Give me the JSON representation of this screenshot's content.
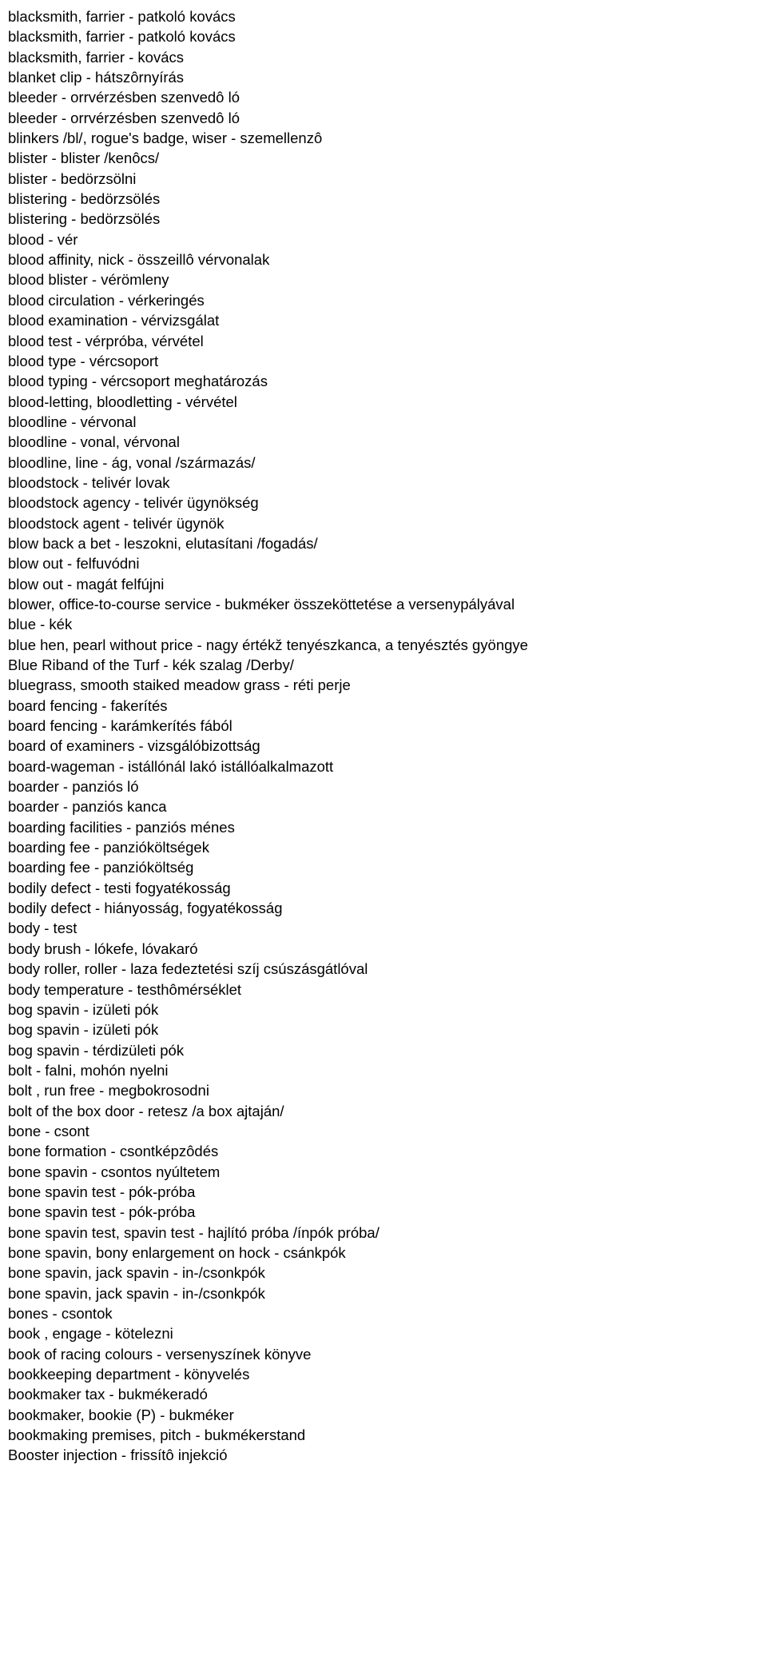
{
  "entries": [
    "blacksmith, farrier - patkoló kovács",
    "blacksmith, farrier - patkoló kovács",
    "blacksmith, farrier - kovács",
    "blanket clip - hátszôrnyírás",
    "bleeder - orrvérzésben szenvedô ló",
    "bleeder - orrvérzésben szenvedô ló",
    "blinkers /bl/, rogue's badge, wiser - szemellenzô",
    "blister - blister /kenôcs/",
    "blister - bedörzsölni",
    "blistering - bedörzsölés",
    "blistering - bedörzsölés",
    "blood - vér",
    "blood affinity, nick - összeillô vérvonalak",
    "blood blister - vérömleny",
    "blood circulation - vérkeringés",
    "blood examination - vérvizsgálat",
    "blood test - vérpróba, vérvétel",
    "blood type - vércsoport",
    "blood typing - vércsoport meghatározás",
    "blood-letting, bloodletting - vérvétel",
    "bloodline - vérvonal",
    "bloodline - vonal, vérvonal",
    "bloodline, line - ág, vonal /származás/",
    "bloodstock - telivér lovak",
    "bloodstock agency - telivér ügynökség",
    "bloodstock agent - telivér ügynök",
    "blow back a bet - leszokni, elutasítani /fogadás/",
    "blow out - felfuvódni",
    "blow out - magát felfújni",
    "blower, office-to-course service - bukméker összeköttetése a versenypályával",
    "blue - kék",
    "blue hen, pearl without price - nagy értékž tenyészkanca, a tenyésztés gyöngye",
    "Blue Riband of the Turf - kék szalag /Derby/",
    "bluegrass, smooth staiked meadow grass - réti perje",
    "board fencing - fakerítés",
    "board fencing - karámkerítés fából",
    "board of examiners - vizsgálóbizottság",
    "board-wageman - istállónál lakó istállóalkalmazott",
    "boarder - panziós ló",
    "boarder - panziós kanca",
    "boarding facilities - panziós ménes",
    "boarding fee - panzióköltségek",
    "boarding fee - panzióköltség",
    "bodily defect - testi fogyatékosság",
    "bodily defect - hiányosság, fogyatékosság",
    "body - test",
    "body brush - lókefe, lóvakaró",
    "body roller, roller - laza fedeztetési szíj csúszásgátlóval",
    "body temperature - testhômérséklet",
    "bog spavin - izületi pók",
    "bog spavin - izületi pók",
    "bog spavin - térdizületi pók",
    "bolt - falni, mohón nyelni",
    "bolt , run free - megbokrosodni",
    "bolt of the box door - retesz /a box ajtaján/",
    "bone - csont",
    "bone formation - csontképzôdés",
    "bone spavin - csontos nyúltetem",
    "bone spavin test - pók-próba",
    "bone spavin test - pók-próba",
    "bone spavin test, spavin test - hajlító próba /ínpók próba/",
    "bone spavin, bony enlargement on hock - csánkpók",
    "bone spavin, jack spavin - in-/csonkpók",
    "bone spavin, jack spavin - in-/csonkpók",
    "bones - csontok",
    "book , engage - kötelezni",
    "book of racing colours - versenyszínek könyve",
    "bookkeeping department - könyvelés",
    "bookmaker tax - bukmékeradó",
    "bookmaker, bookie (P) - bukméker",
    "bookmaking premises, pitch - bukmékerstand",
    "Booster injection - frissítô injekció"
  ]
}
